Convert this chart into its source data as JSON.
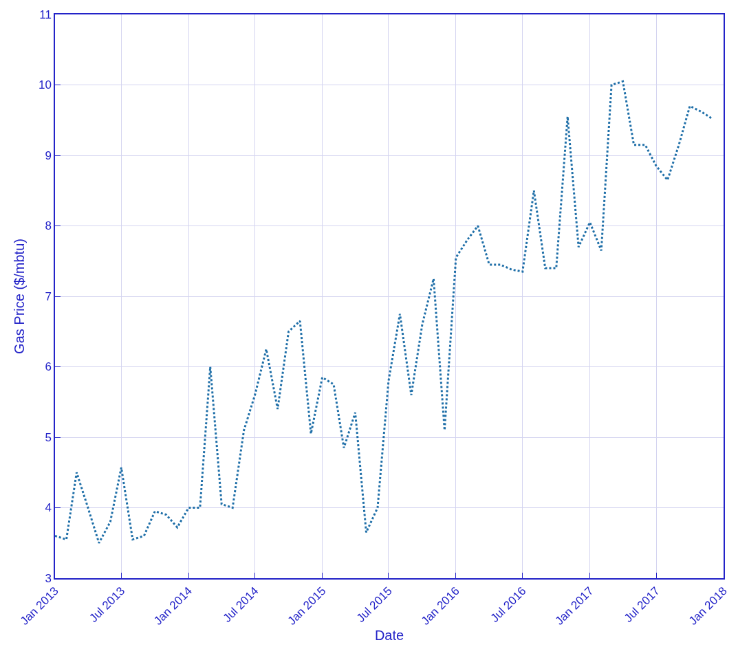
{
  "chart_data": {
    "type": "line",
    "xlabel": "Date",
    "ylabel": "Gas Price ($/mbtu)",
    "x": [
      "2013-01",
      "2013-02",
      "2013-03",
      "2013-04",
      "2013-05",
      "2013-06",
      "2013-07",
      "2013-08",
      "2013-09",
      "2013-10",
      "2013-11",
      "2013-12",
      "2014-01",
      "2014-02",
      "2014-03",
      "2014-04",
      "2014-05",
      "2014-06",
      "2014-07",
      "2014-08",
      "2014-09",
      "2014-10",
      "2014-11",
      "2014-12",
      "2015-01",
      "2015-02",
      "2015-03",
      "2015-04",
      "2015-05",
      "2015-06",
      "2015-07",
      "2015-08",
      "2015-09",
      "2015-10",
      "2015-11",
      "2015-12",
      "2016-01",
      "2016-02",
      "2016-03",
      "2016-04",
      "2016-05",
      "2016-06",
      "2016-07",
      "2016-08",
      "2016-09",
      "2016-10",
      "2016-11",
      "2016-12",
      "2017-01",
      "2017-02",
      "2017-03",
      "2017-04",
      "2017-05",
      "2017-06",
      "2017-07",
      "2017-08",
      "2017-09",
      "2017-10",
      "2017-11",
      "2017-12"
    ],
    "series": [
      {
        "color": "#1f6fa8",
        "values": [
          3.6,
          3.55,
          4.5,
          4.0,
          3.5,
          3.8,
          4.57,
          3.55,
          3.6,
          3.95,
          3.9,
          3.72,
          4.0,
          4.0,
          6.0,
          4.05,
          4.0,
          5.1,
          5.6,
          6.25,
          5.4,
          6.5,
          6.65,
          5.05,
          5.85,
          5.75,
          4.85,
          5.35,
          3.65,
          4.0,
          5.8,
          6.75,
          5.6,
          6.6,
          7.25,
          5.1,
          7.55,
          7.8,
          8.0,
          7.45,
          7.45,
          7.38,
          7.35,
          8.5,
          7.4,
          7.4,
          9.55,
          7.7,
          8.05,
          7.65,
          10.0,
          10.05,
          9.15,
          9.15,
          8.85,
          8.65,
          9.15,
          9.7,
          9.62,
          9.52
        ]
      }
    ],
    "xlim": [
      "2013-01-01",
      "2018-01-01"
    ],
    "xticks": [
      {
        "value": "2013-01-01",
        "label": "Jan 2013"
      },
      {
        "value": "2013-07-01",
        "label": "Jul 2013"
      },
      {
        "value": "2014-01-01",
        "label": "Jan 2014"
      },
      {
        "value": "2014-07-01",
        "label": "Jul 2014"
      },
      {
        "value": "2015-01-01",
        "label": "Jan 2015"
      },
      {
        "value": "2015-07-01",
        "label": "Jul 2015"
      },
      {
        "value": "2016-01-01",
        "label": "Jan 2016"
      },
      {
        "value": "2016-07-01",
        "label": "Jul 2016"
      },
      {
        "value": "2017-01-01",
        "label": "Jan 2017"
      },
      {
        "value": "2017-07-01",
        "label": "Jul 2017"
      },
      {
        "value": "2018-01-01",
        "label": "Jan 2018"
      }
    ],
    "ylim": [
      3,
      11
    ],
    "yticks": [
      3,
      4,
      5,
      6,
      7,
      8,
      9,
      10,
      11
    ],
    "grid": true,
    "line_style": "dotted",
    "marker": "none"
  }
}
